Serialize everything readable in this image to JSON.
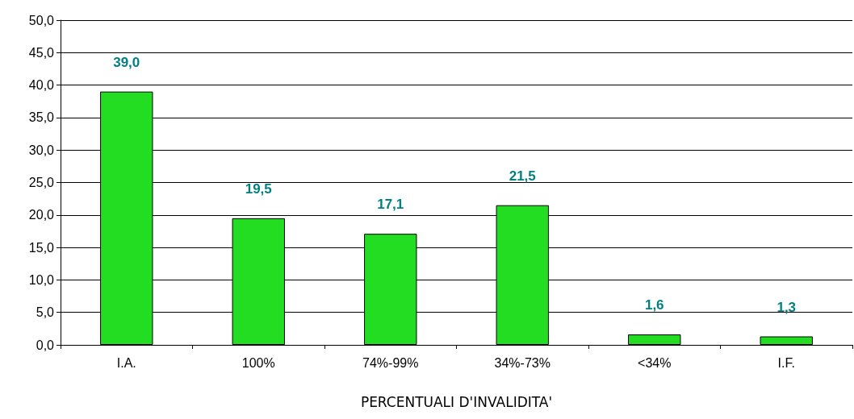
{
  "chart_data": {
    "type": "bar",
    "xlabel": "PERCENTUALI D'INVALIDITA'",
    "categories": [
      "I.A.",
      "100%",
      "74%-99%",
      "34%-73%",
      "<34%",
      "I.F."
    ],
    "values": [
      39.0,
      19.5,
      17.1,
      21.5,
      1.6,
      1.3
    ],
    "value_labels": [
      "39,0",
      "19,5",
      "17,1",
      "21,5",
      "1,6",
      "1,3"
    ],
    "color": "#22dd22",
    "ylim": [
      0,
      50
    ],
    "yticks": [
      {
        "value": 0,
        "label": "0,0"
      },
      {
        "value": 5,
        "label": "5,0"
      },
      {
        "value": 10,
        "label": "10,0"
      },
      {
        "value": 15,
        "label": "15,0"
      },
      {
        "value": 20,
        "label": "20,0"
      },
      {
        "value": 25,
        "label": "25,0"
      },
      {
        "value": 30,
        "label": "30,0"
      },
      {
        "value": 35,
        "label": "35,0"
      },
      {
        "value": 40,
        "label": "40,0"
      },
      {
        "value": 45,
        "label": "45,0"
      },
      {
        "value": 50,
        "label": "50,0"
      }
    ],
    "grid": "y"
  }
}
